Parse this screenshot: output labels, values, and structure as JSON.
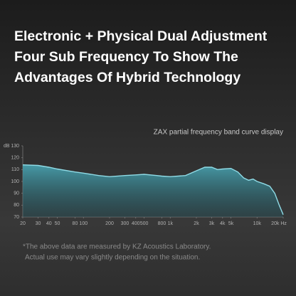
{
  "header": {
    "lines": [
      "Electronic + Physical Dual Adjustment",
      "Four Sub Frequency To Show The",
      "Advantages Of Hybrid Technology"
    ]
  },
  "chart_data": {
    "type": "area",
    "title": "ZAX partial frequency band curve display",
    "ylabel": "dB",
    "xscale": "log",
    "color": "#8fdbe6",
    "x": [
      20,
      30,
      40,
      50,
      80,
      100,
      150,
      200,
      300,
      400,
      500,
      700,
      800,
      1000,
      1500,
      2000,
      2500,
      3000,
      3500,
      4000,
      5000,
      6000,
      7000,
      8000,
      9000,
      10000,
      12000,
      14000,
      16000,
      18000,
      20000
    ],
    "values": [
      114,
      113.5,
      112,
      110.5,
      108,
      107,
      105,
      104,
      105,
      105.5,
      106,
      105,
      104.5,
      104,
      105,
      109,
      112,
      112,
      110,
      110.5,
      111,
      108,
      103,
      101,
      102,
      100,
      98,
      96,
      90,
      80,
      72
    ],
    "xlim": [
      20,
      20000
    ],
    "ylim": [
      70,
      130
    ],
    "xticks": [
      20,
      30,
      40,
      50,
      80,
      100,
      200,
      300,
      400,
      500,
      800,
      {
        "value": 1000,
        "label": "1k"
      },
      {
        "value": 2000,
        "label": "2k"
      },
      {
        "value": 3000,
        "label": "3k"
      },
      {
        "value": 4000,
        "label": "4k"
      },
      {
        "value": 5000,
        "label": "5k"
      },
      {
        "value": 10000,
        "label": "10k"
      },
      {
        "value": 20000,
        "label": "20k Hz"
      }
    ],
    "yticks": [
      70,
      80,
      90,
      100,
      110,
      120,
      130
    ],
    "grid": false
  },
  "footnote": {
    "lines": [
      "*The above data are measured by KZ Acoustics Laboratory.",
      "Actual use may vary slightly depending on the situation."
    ]
  }
}
